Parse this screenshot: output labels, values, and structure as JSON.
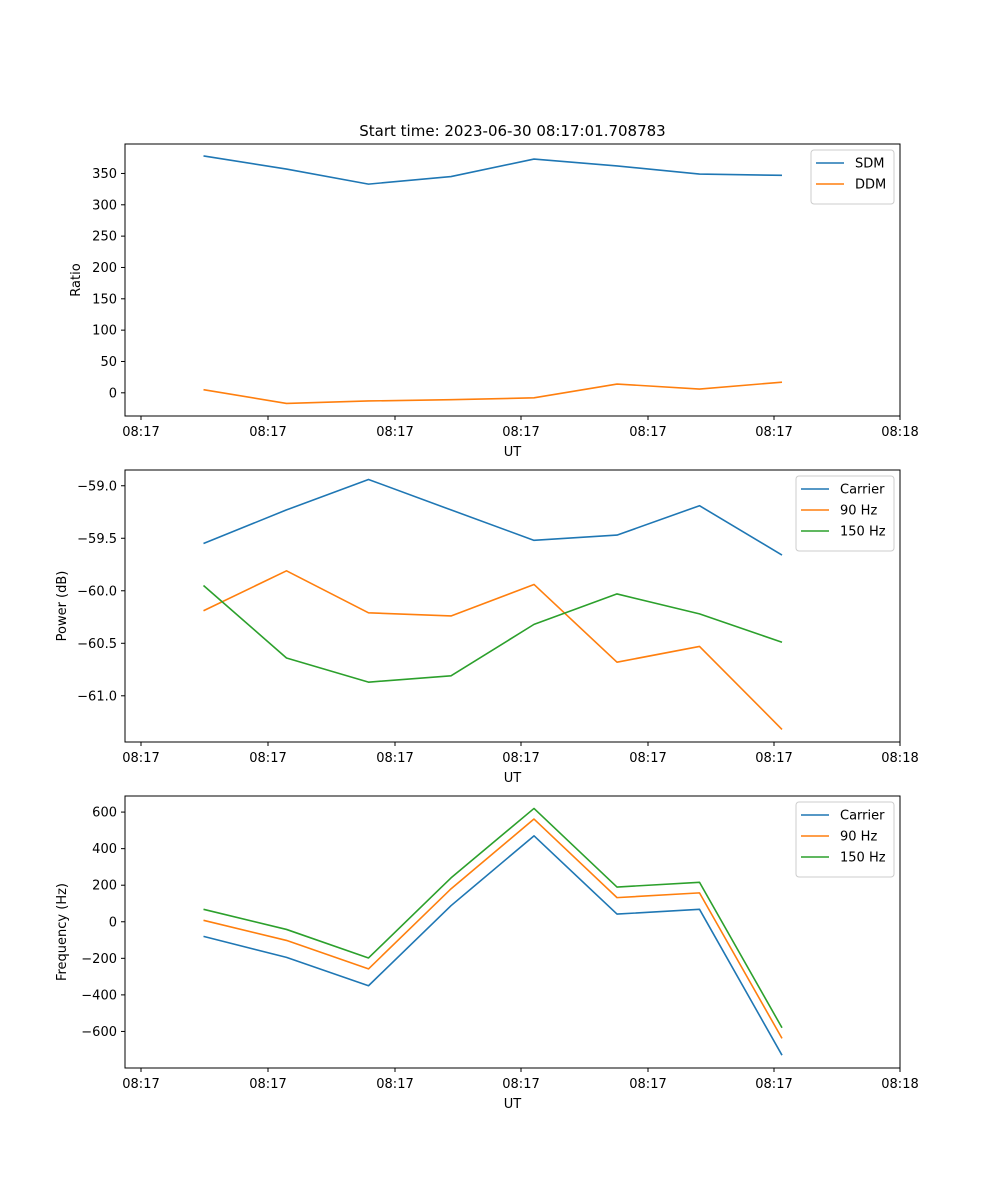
{
  "title": "Start time: 2023-06-30 08:17:01.708783",
  "chart_data": [
    {
      "type": "line",
      "xlabel": "UT",
      "ylabel": "Ratio",
      "x_tick_labels": [
        "08:17",
        "08:17",
        "08:17",
        "08:17",
        "08:17",
        "08:17",
        "08:18"
      ],
      "y_ticks": [
        0,
        50,
        100,
        150,
        200,
        250,
        300,
        350
      ],
      "y_tick_labels": [
        "0",
        "50",
        "100",
        "150",
        "200",
        "250",
        "300",
        "350"
      ],
      "ylim": [
        -37,
        397
      ],
      "legend_position": "upper right",
      "grid": false,
      "series": [
        {
          "name": "SDM",
          "color": "#1f77b4",
          "values": [
            378,
            357,
            333,
            345,
            373,
            362,
            349,
            347
          ]
        },
        {
          "name": "DDM",
          "color": "#ff7f0e",
          "values": [
            5,
            -17,
            -13,
            -11,
            -8,
            14,
            6,
            17
          ]
        }
      ]
    },
    {
      "type": "line",
      "xlabel": "UT",
      "ylabel": "Power (dB)",
      "x_tick_labels": [
        "08:17",
        "08:17",
        "08:17",
        "08:17",
        "08:17",
        "08:17",
        "08:18"
      ],
      "y_ticks": [
        -59.0,
        -59.5,
        -60.0,
        -60.5,
        -61.0
      ],
      "y_tick_labels": [
        "−59.0",
        "−59.5",
        "−60.0",
        "−60.5",
        "−61.0"
      ],
      "ylim": [
        -61.44,
        -58.85
      ],
      "legend_position": "upper right",
      "grid": false,
      "series": [
        {
          "name": "Carrier",
          "color": "#1f77b4",
          "values": [
            -59.55,
            -59.23,
            -58.94,
            -59.23,
            -59.52,
            -59.47,
            -59.19,
            -59.66
          ]
        },
        {
          "name": "90 Hz",
          "color": "#ff7f0e",
          "values": [
            -60.19,
            -59.81,
            -60.21,
            -60.24,
            -59.94,
            -60.68,
            -60.53,
            -61.32
          ]
        },
        {
          "name": "150 Hz",
          "color": "#2ca02c",
          "values": [
            -59.95,
            -60.64,
            -60.87,
            -60.81,
            -60.32,
            -60.03,
            -60.22,
            -60.49
          ]
        }
      ]
    },
    {
      "type": "line",
      "xlabel": "UT",
      "ylabel": "Frequency (Hz)",
      "x_tick_labels": [
        "08:17",
        "08:17",
        "08:17",
        "08:17",
        "08:17",
        "08:17",
        "08:18"
      ],
      "y_ticks": [
        600,
        400,
        200,
        0,
        -200,
        -400,
        -600
      ],
      "y_tick_labels": [
        "600",
        "400",
        "200",
        "0",
        "−200",
        "−400",
        "−600"
      ],
      "ylim": [
        -800,
        688
      ],
      "legend_position": "upper right",
      "grid": false,
      "series": [
        {
          "name": "Carrier",
          "color": "#1f77b4",
          "values": [
            -80,
            -195,
            -350,
            88,
            470,
            42,
            68,
            -730
          ]
        },
        {
          "name": "90 Hz",
          "color": "#ff7f0e",
          "values": [
            8,
            -102,
            -258,
            180,
            562,
            132,
            158,
            -638
          ]
        },
        {
          "name": "150 Hz",
          "color": "#2ca02c",
          "values": [
            68,
            -42,
            -198,
            240,
            620,
            190,
            216,
            -580
          ]
        }
      ]
    }
  ]
}
